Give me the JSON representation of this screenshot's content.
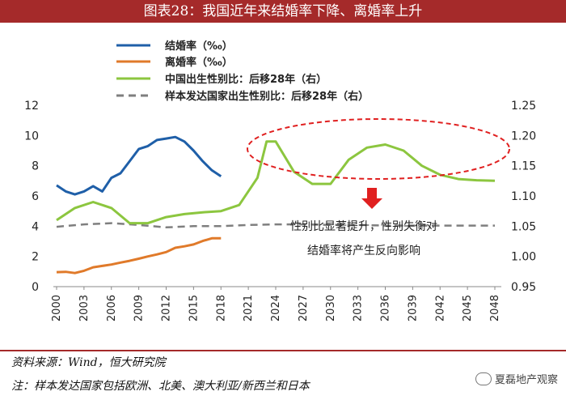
{
  "title": "图表28：我国近年来结婚率下降、离婚率上升",
  "source": "资料来源：Wind，恒大研究院",
  "note": "注：样本发达国家包括欧洲、北美、澳大利亚/新西兰和日本",
  "watermark": "夏磊地产观察",
  "annotation": [
    "性别比显著提升，性别失衡对",
    "结婚率将产生反向影响"
  ],
  "colors": {
    "marriage": "#1f5fa8",
    "divorce": "#e07a2a",
    "china": "#8cc63f",
    "developed": "#7f7f7f",
    "title": "#a52a2a",
    "ellipse": "#e02020",
    "arrow": "#e02020"
  },
  "chart_data": {
    "type": "line",
    "x_ticks": [
      "2000",
      "2003",
      "2006",
      "2009",
      "2012",
      "2015",
      "2018",
      "2021",
      "2024",
      "2027",
      "2030",
      "2033",
      "2036",
      "2039",
      "2042",
      "2045",
      "2048"
    ],
    "y_left": {
      "range": [
        0,
        12
      ],
      "ticks": [
        "0",
        "2",
        "4",
        "6",
        "8",
        "10",
        "12"
      ]
    },
    "y_right": {
      "range": [
        0.95,
        1.25
      ],
      "ticks": [
        "0.95",
        "1.00",
        "1.05",
        "1.10",
        "1.15",
        "1.20",
        "1.25"
      ]
    },
    "series": [
      {
        "name": "结婚率（‰）",
        "axis": "left",
        "color_key": "marriage",
        "x": [
          2000,
          2001,
          2002,
          2003,
          2004,
          2005,
          2006,
          2007,
          2008,
          2009,
          2010,
          2011,
          2012,
          2013,
          2014,
          2015,
          2016,
          2017,
          2018
        ],
        "y": [
          6.7,
          6.3,
          6.1,
          6.3,
          6.65,
          6.3,
          7.2,
          7.5,
          8.3,
          9.1,
          9.3,
          9.7,
          9.8,
          9.9,
          9.6,
          9.0,
          8.3,
          7.7,
          7.3
        ]
      },
      {
        "name": "离婚率（‰）",
        "axis": "left",
        "color_key": "divorce",
        "x": [
          2000,
          2001,
          2002,
          2003,
          2004,
          2005,
          2006,
          2007,
          2008,
          2009,
          2010,
          2011,
          2012,
          2013,
          2014,
          2015,
          2016,
          2017,
          2018
        ],
        "y": [
          0.96,
          0.98,
          0.9,
          1.05,
          1.28,
          1.37,
          1.46,
          1.59,
          1.71,
          1.85,
          2.0,
          2.13,
          2.29,
          2.57,
          2.67,
          2.79,
          3.02,
          3.2,
          3.2
        ]
      },
      {
        "name": "中国出生性别比：后移28年（右）",
        "axis": "right",
        "color_key": "china",
        "x": [
          2000,
          2002,
          2004,
          2006,
          2008,
          2010,
          2012,
          2014,
          2016,
          2018,
          2020,
          2022,
          2023,
          2024,
          2026,
          2028,
          2030,
          2032,
          2034,
          2036,
          2038,
          2040,
          2042,
          2044,
          2046,
          2048
        ],
        "y": [
          1.06,
          1.08,
          1.09,
          1.08,
          1.055,
          1.055,
          1.065,
          1.07,
          1.073,
          1.075,
          1.085,
          1.13,
          1.19,
          1.19,
          1.14,
          1.12,
          1.12,
          1.16,
          1.18,
          1.185,
          1.175,
          1.15,
          1.135,
          1.128,
          1.126,
          1.125
        ]
      },
      {
        "name": "样本发达国家出生性别比：后移28年（右）",
        "axis": "right",
        "color_key": "developed",
        "x": [
          2000,
          2003,
          2006,
          2009,
          2012,
          2015,
          2018,
          2021,
          2024,
          2027,
          2030,
          2033,
          2036,
          2039,
          2042,
          2045,
          2048
        ],
        "y": [
          1.049,
          1.053,
          1.055,
          1.052,
          1.048,
          1.05,
          1.05,
          1.052,
          1.053,
          1.053,
          1.052,
          1.052,
          1.051,
          1.051,
          1.051,
          1.051,
          1.051
        ]
      }
    ]
  }
}
